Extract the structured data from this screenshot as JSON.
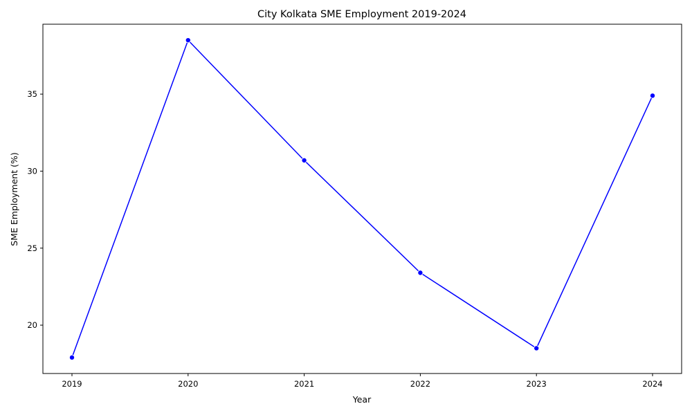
{
  "chart_data": {
    "type": "line",
    "title": "City Kolkata SME Employment 2019-2024",
    "xlabel": "Year",
    "ylabel": "SME Employment (%)",
    "x": [
      "2019",
      "2020",
      "2021",
      "2022",
      "2023",
      "2024"
    ],
    "series": [
      {
        "values": [
          17.9,
          38.5,
          30.7,
          23.4,
          18.5,
          34.9
        ]
      }
    ],
    "yticks": [
      20,
      25,
      30,
      35
    ],
    "ylim": [
      16.86,
      39.54
    ],
    "grid": false,
    "legend": "none",
    "line_color": "#0000ff",
    "marker_color": "#0000ff"
  }
}
